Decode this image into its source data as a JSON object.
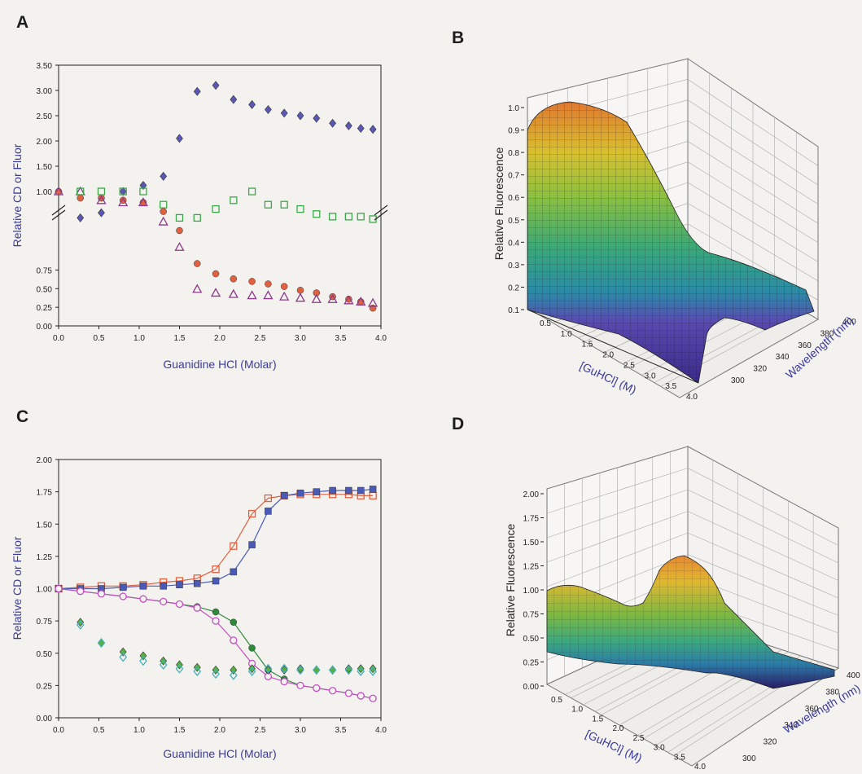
{
  "panel_letters": [
    "A",
    "B",
    "C",
    "D"
  ],
  "chart_data": [
    {
      "id": "A",
      "type": "scatter",
      "title": "",
      "xlabel": "Guanidine HCl (Molar)",
      "ylabel": "Relative CD or Fluor",
      "xlim": [
        0,
        4.0
      ],
      "ylim": [
        0,
        3.5
      ],
      "broken_axis": true,
      "x_ticks": [
        "0.0",
        "0.5",
        "1.0",
        "1.5",
        "2.0",
        "2.5",
        "3.0",
        "3.5",
        "4.0"
      ],
      "y_ticks_lower": [
        "0.00",
        "0.25",
        "0.50",
        "0.75"
      ],
      "y_ticks_upper": [
        "1.00",
        "1.50",
        "2.00",
        "2.50",
        "3.00",
        "3.50"
      ],
      "series": [
        {
          "color": "#5b58b5",
          "marker": "diamond",
          "x": [
            0,
            0.27,
            0.53,
            0.8,
            1.05,
            1.3,
            1.5,
            1.72,
            1.95,
            2.17,
            2.4,
            2.6,
            2.8,
            3.0,
            3.2,
            3.4,
            3.6,
            3.75,
            3.9
          ],
          "y": [
            1.0,
            0.85,
            0.89,
            1.0,
            1.12,
            1.3,
            2.05,
            2.98,
            3.1,
            2.82,
            2.72,
            2.62,
            2.55,
            2.5,
            2.45,
            2.35,
            2.3,
            2.25,
            2.23
          ]
        },
        {
          "color": "#e06040",
          "marker": "circle",
          "x": [
            0,
            0.27,
            0.53,
            0.8,
            1.05,
            1.3,
            1.5,
            1.72,
            1.95,
            2.17,
            2.4,
            2.6,
            2.8,
            3.0,
            3.2,
            3.4,
            3.6,
            3.75,
            3.9
          ],
          "y": [
            1.0,
            0.97,
            0.97,
            0.96,
            0.95,
            0.9,
            0.75,
            0.49,
            0.41,
            0.37,
            0.35,
            0.33,
            0.31,
            0.28,
            0.26,
            0.23,
            0.21,
            0.19,
            0.14
          ]
        },
        {
          "color": "#8a3a88",
          "marker": "triangle",
          "x": [
            0,
            0.27,
            0.53,
            0.8,
            1.05,
            1.3,
            1.5,
            1.72,
            1.95,
            2.17,
            2.4,
            2.6,
            2.8,
            3.0,
            3.2,
            3.4,
            3.6,
            3.75,
            3.9
          ],
          "y": [
            1.0,
            1.0,
            0.96,
            0.95,
            0.95,
            0.82,
            0.62,
            0.29,
            0.26,
            0.25,
            0.24,
            0.24,
            0.23,
            0.22,
            0.21,
            0.21,
            0.2,
            0.19,
            0.18
          ]
        },
        {
          "color": "#3aa84a",
          "marker": "square",
          "x": [
            0.27,
            0.53,
            0.8,
            1.05,
            1.3,
            1.5,
            1.72,
            1.95,
            2.17,
            2.4,
            2.6,
            2.8,
            3.0,
            3.2,
            3.4,
            3.6,
            3.75,
            3.9
          ],
          "y": [
            1.0,
            1.0,
            1.0,
            1.0,
            0.94,
            0.85,
            0.85,
            0.92,
            0.96,
            1.0,
            0.94,
            0.94,
            0.92,
            0.88,
            0.86,
            0.86,
            0.86,
            0.84
          ]
        }
      ]
    },
    {
      "id": "B",
      "type": "surface",
      "zlabel": "Relative Fluorescence",
      "xlabel": "[GuHCl] (M)",
      "ylabel": "Wavelength (nm)",
      "z_ticks": [
        "0.1",
        "0.2",
        "0.3",
        "0.4",
        "0.5",
        "0.6",
        "0.7",
        "0.8",
        "0.9",
        "1.0"
      ],
      "x_ticks": [
        "0.5",
        "1.0",
        "1.5",
        "2.0",
        "2.5",
        "3.0",
        "3.5",
        "4.0"
      ],
      "y_ticks": [
        "300",
        "320",
        "340",
        "360",
        "380",
        "400"
      ]
    },
    {
      "id": "C",
      "type": "line",
      "title": "",
      "xlabel": "Guanidine HCl (Molar)",
      "ylabel": "Relative CD or Fluor",
      "xlim": [
        0,
        4.0
      ],
      "ylim": [
        0,
        2.0
      ],
      "x_ticks": [
        "0.0",
        "0.5",
        "1.0",
        "1.5",
        "2.0",
        "2.5",
        "3.0",
        "3.5",
        "4.0"
      ],
      "y_ticks": [
        "0.00",
        "0.25",
        "0.50",
        "0.75",
        "1.00",
        "1.25",
        "1.50",
        "1.75",
        "2.00"
      ],
      "series": [
        {
          "color": "#e06040",
          "marker": "open-square",
          "line": true,
          "x": [
            0,
            0.27,
            0.53,
            0.8,
            1.05,
            1.3,
            1.5,
            1.72,
            1.95,
            2.17,
            2.4,
            2.6,
            2.8,
            3.0,
            3.2,
            3.4,
            3.6,
            3.75,
            3.9
          ],
          "y": [
            1.0,
            1.01,
            1.02,
            1.02,
            1.03,
            1.05,
            1.06,
            1.08,
            1.15,
            1.33,
            1.58,
            1.7,
            1.72,
            1.73,
            1.73,
            1.73,
            1.73,
            1.72,
            1.72
          ]
        },
        {
          "color": "#4a5ab8",
          "marker": "filled-square",
          "line": true,
          "x": [
            0,
            0.27,
            0.53,
            0.8,
            1.05,
            1.3,
            1.5,
            1.72,
            1.95,
            2.17,
            2.4,
            2.6,
            2.8,
            3.0,
            3.2,
            3.4,
            3.6,
            3.75,
            3.9
          ],
          "y": [
            1.0,
            1.0,
            1.0,
            1.01,
            1.02,
            1.02,
            1.03,
            1.04,
            1.06,
            1.13,
            1.34,
            1.6,
            1.72,
            1.74,
            1.75,
            1.76,
            1.76,
            1.76,
            1.77
          ]
        },
        {
          "color": "#2e8a3a",
          "marker": "filled-circle",
          "line": true,
          "x": [
            0,
            0.27,
            0.53,
            0.8,
            1.05,
            1.3,
            1.5,
            1.72,
            1.95,
            2.17,
            2.4,
            2.6,
            2.8,
            3.0,
            3.2,
            3.4,
            3.6,
            3.75,
            3.9
          ],
          "y": [
            1.0,
            0.98,
            0.96,
            0.94,
            0.92,
            0.9,
            0.88,
            0.86,
            0.82,
            0.74,
            0.54,
            0.37,
            0.3,
            0.25,
            0.23,
            0.21,
            0.19,
            0.17,
            0.15
          ]
        },
        {
          "color": "#c050c0",
          "marker": "open-circle",
          "line": true,
          "x": [
            0,
            0.27,
            0.53,
            0.8,
            1.05,
            1.3,
            1.5,
            1.72,
            1.95,
            2.17,
            2.4,
            2.6,
            2.8,
            3.0,
            3.2,
            3.4,
            3.6,
            3.75,
            3.9
          ],
          "y": [
            1.0,
            0.98,
            0.96,
            0.94,
            0.92,
            0.9,
            0.88,
            0.85,
            0.75,
            0.6,
            0.42,
            0.32,
            0.28,
            0.25,
            0.23,
            0.21,
            0.19,
            0.17,
            0.15
          ]
        },
        {
          "color": "#58b040",
          "marker": "filled-diamond",
          "line": false,
          "x": [
            0.27,
            0.53,
            0.8,
            1.05,
            1.3,
            1.5,
            1.72,
            1.95,
            2.17,
            2.4,
            2.6,
            2.8,
            3.0,
            3.2,
            3.4,
            3.6,
            3.75,
            3.9
          ],
          "y": [
            0.74,
            0.58,
            0.51,
            0.48,
            0.44,
            0.41,
            0.39,
            0.37,
            0.37,
            0.38,
            0.37,
            0.37,
            0.38,
            0.37,
            0.37,
            0.38,
            0.38,
            0.38
          ]
        },
        {
          "color": "#45b0b8",
          "marker": "open-diamond",
          "line": false,
          "x": [
            0.27,
            0.53,
            0.8,
            1.05,
            1.3,
            1.5,
            1.72,
            1.95,
            2.17,
            2.4,
            2.6,
            2.8,
            3.0,
            3.2,
            3.4,
            3.6,
            3.75,
            3.9
          ],
          "y": [
            0.72,
            0.58,
            0.47,
            0.44,
            0.41,
            0.38,
            0.36,
            0.34,
            0.33,
            0.36,
            0.38,
            0.38,
            0.37,
            0.37,
            0.37,
            0.37,
            0.36,
            0.36
          ]
        }
      ]
    },
    {
      "id": "D",
      "type": "surface",
      "zlabel": "Relative Fluorescence",
      "xlabel": "[GuHCl] (M)",
      "ylabel": "Wavelength (nm)",
      "z_ticks": [
        "0.00",
        "0.25",
        "0.50",
        "0.75",
        "1.00",
        "1.25",
        "1.50",
        "1.75",
        "2.00"
      ],
      "x_ticks": [
        "0.5",
        "1.0",
        "1.5",
        "2.0",
        "2.5",
        "3.0",
        "3.5",
        "4.0"
      ],
      "y_ticks": [
        "300",
        "320",
        "340",
        "360",
        "380",
        "400"
      ]
    }
  ]
}
